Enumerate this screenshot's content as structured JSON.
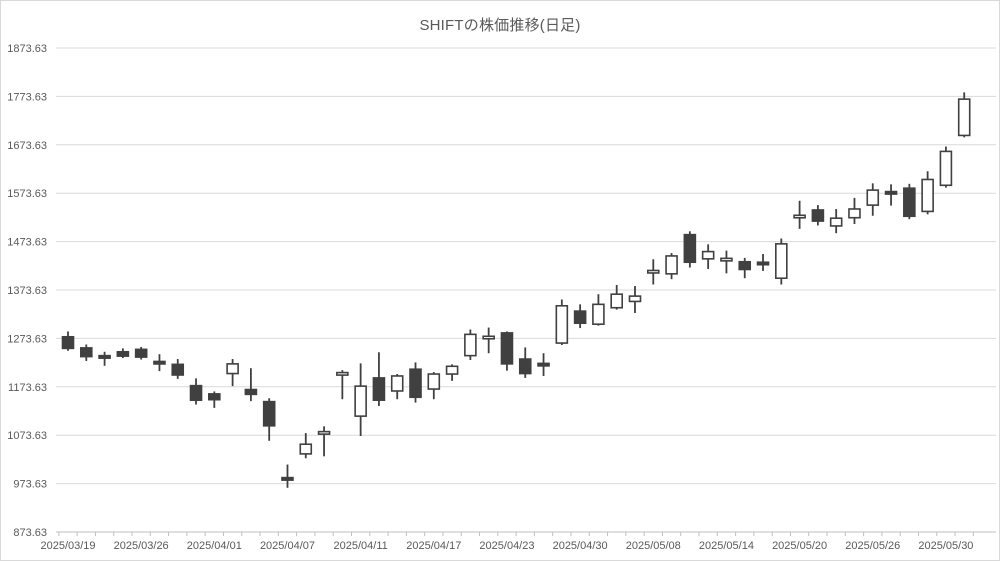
{
  "chart_data": {
    "type": "candlestick",
    "title": "SHIFTの株価推移(日足)",
    "legend": "none",
    "grid": "horizontal",
    "y_axis": {
      "min": 873.63,
      "max": 1873.63,
      "step": 100,
      "ticks": [
        {
          "label": "1873.63",
          "value": 1873.63
        },
        {
          "label": "1773.63",
          "value": 1773.63
        },
        {
          "label": "1673.63",
          "value": 1673.63
        },
        {
          "label": "1573.63",
          "value": 1573.63
        },
        {
          "label": "1473.63",
          "value": 1473.63
        },
        {
          "label": "1373.63",
          "value": 1373.63
        },
        {
          "label": "1273.63",
          "value": 1273.63
        },
        {
          "label": "1173.63",
          "value": 1173.63
        },
        {
          "label": "1073.63",
          "value": 1073.63
        },
        {
          "label": "973.63",
          "value": 973.63
        },
        {
          "label": "873.63",
          "value": 873.63
        }
      ]
    },
    "x_axis": {
      "tick_labels": [
        {
          "index": 0,
          "label": "2025/03/19"
        },
        {
          "index": 4,
          "label": "2025/03/26"
        },
        {
          "index": 8,
          "label": "2025/04/01"
        },
        {
          "index": 12,
          "label": "2025/04/07"
        },
        {
          "index": 16,
          "label": "2025/04/11"
        },
        {
          "index": 20,
          "label": "2025/04/17"
        },
        {
          "index": 24,
          "label": "2025/04/23"
        },
        {
          "index": 28,
          "label": "2025/04/30"
        },
        {
          "index": 32,
          "label": "2025/05/08"
        },
        {
          "index": 36,
          "label": "2025/05/14"
        },
        {
          "index": 40,
          "label": "2025/05/20"
        },
        {
          "index": 44,
          "label": "2025/05/26"
        },
        {
          "index": 48,
          "label": "2025/05/30"
        }
      ]
    },
    "candles_ohlc": [
      [
        1277,
        1288,
        1248,
        1253
      ],
      [
        1254,
        1261,
        1227,
        1236
      ],
      [
        1238,
        1246,
        1217,
        1234
      ],
      [
        1246,
        1253,
        1233,
        1237
      ],
      [
        1251,
        1256,
        1230,
        1235
      ],
      [
        1226,
        1241,
        1206,
        1223
      ],
      [
        1220,
        1231,
        1190,
        1198
      ],
      [
        1176,
        1191,
        1137,
        1146
      ],
      [
        1159,
        1164,
        1130,
        1147
      ],
      [
        1201,
        1231,
        1175,
        1221
      ],
      [
        1168,
        1212,
        1144,
        1158
      ],
      [
        1143,
        1150,
        1062,
        1093
      ],
      [
        986,
        1013,
        965,
        982
      ],
      [
        1035,
        1078,
        1026,
        1055
      ],
      [
        1079,
        1092,
        1030,
        1081
      ],
      [
        1202,
        1208,
        1148,
        1203
      ],
      [
        1113,
        1222,
        1072,
        1175
      ],
      [
        1192,
        1245,
        1134,
        1146
      ],
      [
        1165,
        1200,
        1148,
        1196
      ],
      [
        1210,
        1224,
        1141,
        1152
      ],
      [
        1169,
        1204,
        1148,
        1200
      ],
      [
        1200,
        1220,
        1186,
        1216
      ],
      [
        1238,
        1292,
        1229,
        1282
      ],
      [
        1276,
        1296,
        1243,
        1278
      ],
      [
        1285,
        1288,
        1207,
        1221
      ],
      [
        1231,
        1255,
        1192,
        1201
      ],
      [
        1222,
        1243,
        1196,
        1220
      ],
      [
        1264,
        1354,
        1260,
        1341
      ],
      [
        1330,
        1344,
        1295,
        1305
      ],
      [
        1303,
        1365,
        1300,
        1344
      ],
      [
        1337,
        1384,
        1333,
        1365
      ],
      [
        1350,
        1382,
        1326,
        1361
      ],
      [
        1412,
        1437,
        1385,
        1414
      ],
      [
        1407,
        1450,
        1396,
        1444
      ],
      [
        1488,
        1495,
        1420,
        1431
      ],
      [
        1438,
        1468,
        1417,
        1453
      ],
      [
        1437,
        1455,
        1408,
        1439
      ],
      [
        1432,
        1440,
        1398,
        1416
      ],
      [
        1431,
        1448,
        1413,
        1429
      ],
      [
        1398,
        1480,
        1385,
        1469
      ],
      [
        1526,
        1558,
        1500,
        1528
      ],
      [
        1539,
        1549,
        1507,
        1516
      ],
      [
        1506,
        1541,
        1491,
        1522
      ],
      [
        1523,
        1564,
        1510,
        1541
      ],
      [
        1549,
        1594,
        1527,
        1580
      ],
      [
        1577,
        1592,
        1548,
        1574
      ],
      [
        1584,
        1593,
        1520,
        1526
      ],
      [
        1536,
        1619,
        1530,
        1602
      ],
      [
        1590,
        1670,
        1585,
        1660
      ],
      [
        1693,
        1782,
        1689,
        1768
      ]
    ],
    "colors": {
      "up_fill": "#ffffff",
      "down_fill": "#404040",
      "outline": "#404040",
      "grid": "#d9d9d9",
      "axis": "#bfbfbf",
      "text": "#595959",
      "background": "#ffffff"
    }
  }
}
